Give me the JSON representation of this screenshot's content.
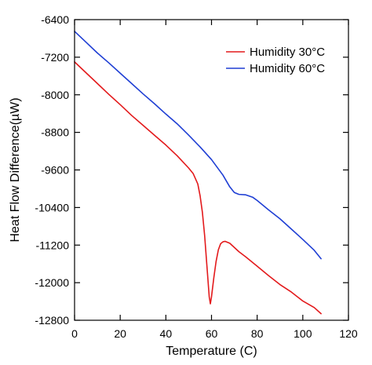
{
  "chart_data": {
    "type": "line",
    "title": "",
    "xlabel": "Temperature (C)",
    "ylabel": "Heat Flow Difference(µW)",
    "xlim": [
      0,
      120
    ],
    "ylim": [
      -12800,
      -6400
    ],
    "xticks": [
      0,
      20,
      40,
      60,
      80,
      100,
      120
    ],
    "yticks": [
      -6400,
      -7200,
      -8000,
      -8800,
      -9600,
      -10400,
      -11200,
      -12000,
      -12800
    ],
    "grid": false,
    "legend_position": "top-right",
    "series": [
      {
        "name": "Humidity 30°C",
        "color": "#e31a1c",
        "points": [
          [
            0,
            -7300
          ],
          [
            5,
            -7530
          ],
          [
            10,
            -7760
          ],
          [
            15,
            -7990
          ],
          [
            20,
            -8210
          ],
          [
            25,
            -8440
          ],
          [
            30,
            -8650
          ],
          [
            35,
            -8860
          ],
          [
            40,
            -9070
          ],
          [
            45,
            -9300
          ],
          [
            50,
            -9560
          ],
          [
            52,
            -9680
          ],
          [
            54,
            -9900
          ],
          [
            55,
            -10150
          ],
          [
            56,
            -10500
          ],
          [
            57,
            -11000
          ],
          [
            58,
            -11650
          ],
          [
            59,
            -12300
          ],
          [
            59.5,
            -12450
          ],
          [
            60,
            -12300
          ],
          [
            61,
            -11900
          ],
          [
            62,
            -11550
          ],
          [
            63,
            -11300
          ],
          [
            64,
            -11170
          ],
          [
            65,
            -11130
          ],
          [
            66,
            -11120
          ],
          [
            68,
            -11160
          ],
          [
            70,
            -11250
          ],
          [
            72,
            -11340
          ],
          [
            75,
            -11450
          ],
          [
            80,
            -11650
          ],
          [
            85,
            -11850
          ],
          [
            90,
            -12040
          ],
          [
            95,
            -12200
          ],
          [
            100,
            -12390
          ],
          [
            105,
            -12530
          ],
          [
            108,
            -12660
          ]
        ]
      },
      {
        "name": "Humidity 60°C",
        "color": "#1f3fd4",
        "points": [
          [
            0,
            -6650
          ],
          [
            5,
            -6880
          ],
          [
            10,
            -7110
          ],
          [
            15,
            -7320
          ],
          [
            20,
            -7540
          ],
          [
            25,
            -7760
          ],
          [
            30,
            -7980
          ],
          [
            35,
            -8190
          ],
          [
            40,
            -8410
          ],
          [
            45,
            -8620
          ],
          [
            50,
            -8860
          ],
          [
            55,
            -9110
          ],
          [
            60,
            -9380
          ],
          [
            65,
            -9710
          ],
          [
            68,
            -9960
          ],
          [
            70,
            -10080
          ],
          [
            72,
            -10120
          ],
          [
            75,
            -10130
          ],
          [
            78,
            -10180
          ],
          [
            80,
            -10250
          ],
          [
            85,
            -10450
          ],
          [
            90,
            -10640
          ],
          [
            95,
            -10860
          ],
          [
            100,
            -11080
          ],
          [
            105,
            -11310
          ],
          [
            108,
            -11490
          ]
        ]
      }
    ]
  }
}
